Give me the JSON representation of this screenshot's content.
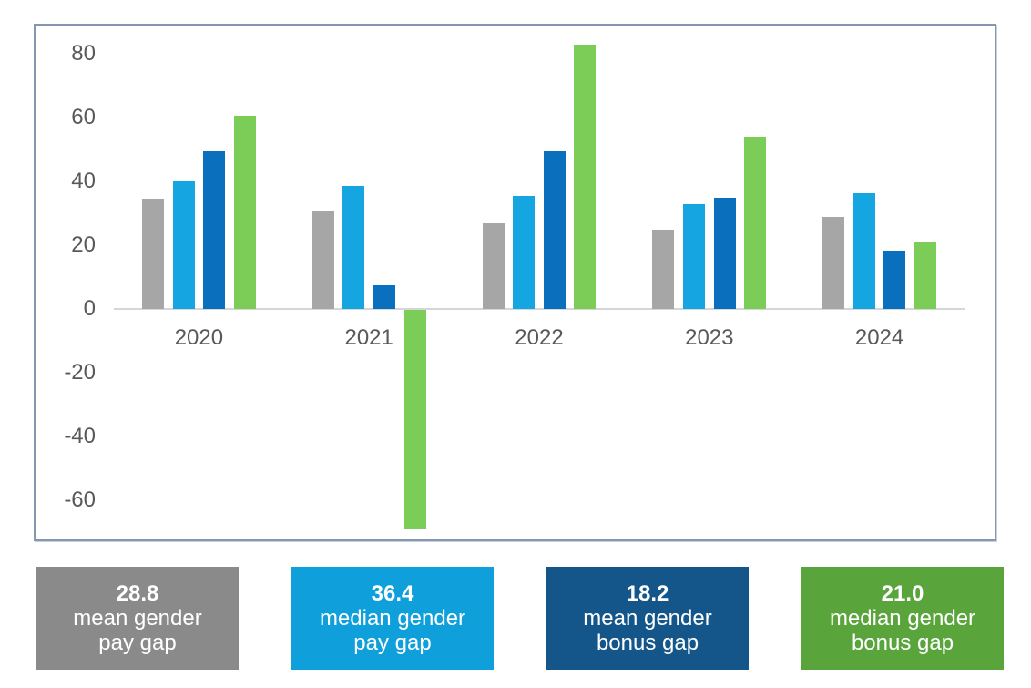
{
  "chart_data": {
    "type": "bar",
    "title": "",
    "xlabel": "",
    "ylabel": "",
    "categories": [
      "2020",
      "2021",
      "2022",
      "2023",
      "2024"
    ],
    "series": [
      {
        "name": "mean gender pay gap",
        "color": "#a6a6a6",
        "values": [
          34.5,
          30.5,
          27.0,
          25.0,
          28.8
        ]
      },
      {
        "name": "median gender pay gap",
        "color": "#15a6e1",
        "values": [
          40.0,
          38.5,
          35.5,
          33.0,
          36.4
        ]
      },
      {
        "name": "mean gender bonus gap",
        "color": "#0a6fbd",
        "values": [
          49.5,
          7.5,
          49.5,
          35.0,
          18.2
        ]
      },
      {
        "name": "median gender bonus gap",
        "color": "#7ccd57",
        "values": [
          60.5,
          -68.5,
          83.0,
          54.0,
          21.0
        ]
      }
    ],
    "y_axis": {
      "min": -60,
      "max": 80,
      "step": 20,
      "ticks": [
        80,
        60,
        40,
        20,
        0,
        -20,
        -40,
        -60
      ]
    },
    "grid": false,
    "legend_position": "bottom-cards"
  },
  "legend": {
    "cards": [
      {
        "value": "28.8",
        "line1": "mean gender",
        "line2": "pay gap",
        "color": "#8a8a8a"
      },
      {
        "value": "36.4",
        "line1": "median gender",
        "line2": "pay gap",
        "color": "#0fa0db"
      },
      {
        "value": "18.2",
        "line1": "mean gender",
        "line2": "bonus gap",
        "color": "#14568a"
      },
      {
        "value": "21.0",
        "line1": "median gender",
        "line2": "bonus gap",
        "color": "#59a53c"
      }
    ]
  }
}
